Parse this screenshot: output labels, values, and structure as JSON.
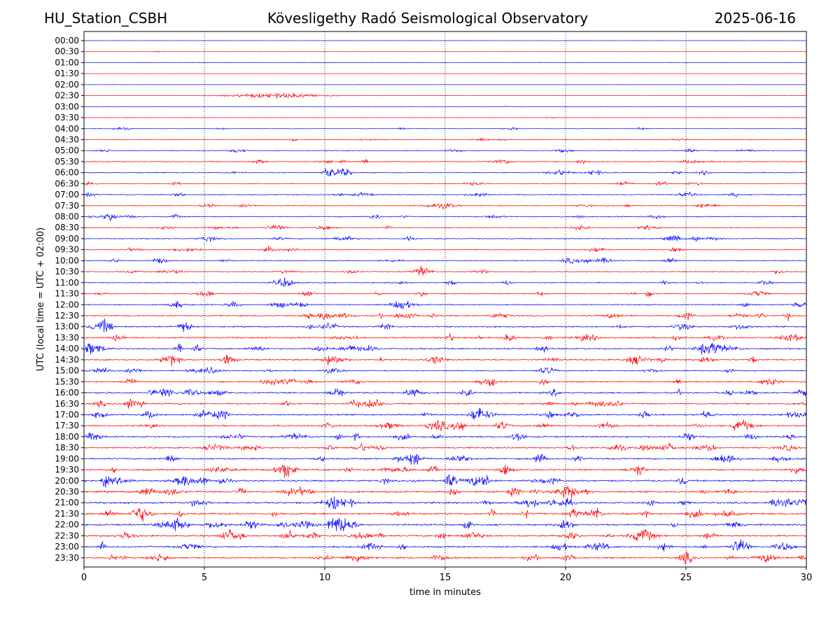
{
  "header": {
    "station": "HU_Station_CSBH",
    "title": "Kövesligethy Radó Seismological Observatory",
    "date": "2025-06-16"
  },
  "chart_data": {
    "type": "line",
    "title": "Kövesligethy Radó Seismological Observatory",
    "xlabel": "time in minutes",
    "ylabel": "UTC (local time = UTC + 02:00)",
    "xlim": [
      0,
      30
    ],
    "xticks": [
      "0",
      "5",
      "10",
      "15",
      "20",
      "25",
      "30"
    ],
    "grid": "vertical dotted lines at 5-minute intervals",
    "colors": [
      "#0000ff",
      "#ff0000"
    ],
    "rows": [
      "00:00",
      "00:30",
      "01:00",
      "01:30",
      "02:00",
      "02:30",
      "03:00",
      "03:30",
      "04:00",
      "04:30",
      "05:00",
      "05:30",
      "06:00",
      "06:30",
      "07:00",
      "07:30",
      "08:00",
      "08:30",
      "09:00",
      "09:30",
      "10:00",
      "10:30",
      "11:00",
      "11:30",
      "12:00",
      "12:30",
      "13:00",
      "13:30",
      "14:00",
      "14:30",
      "15:00",
      "15:30",
      "16:00",
      "16:30",
      "17:00",
      "17:30",
      "18:00",
      "18:30",
      "19:00",
      "19:30",
      "20:00",
      "20:30",
      "21:00",
      "21:30",
      "22:00",
      "22:30",
      "23:00",
      "23:30"
    ],
    "noise_level": [
      0.3,
      0.3,
      0.4,
      0.3,
      0.3,
      0.3,
      0.4,
      0.8,
      1.5,
      1.5,
      2.0,
      2.5,
      2.5,
      2.0,
      2.5,
      2.5,
      2.5,
      2.5,
      2.5,
      2.5,
      2.5,
      2.5,
      2.5,
      2.8,
      3.0,
      3.5,
      3.5,
      4.0,
      4.0,
      4.0,
      3.0,
      3.5,
      4.0,
      4.0,
      4.0,
      4.0,
      4.0,
      4.0,
      4.0,
      4.5,
      4.5,
      4.5,
      4.5,
      4.5,
      4.5,
      4.5,
      4.0,
      4.0
    ],
    "events": [
      {
        "time": "00:30",
        "minute": 3.1,
        "amplitude": 1.5
      },
      {
        "time": "02:30",
        "minute": 8.0,
        "amplitude": 5.0,
        "duration_min": 4.0
      },
      {
        "time": "08:00",
        "minute": 1.1,
        "amplitude": 9
      },
      {
        "time": "06:00",
        "minute": 10.1,
        "amplitude": 8
      },
      {
        "time": "09:00",
        "minute": 24.5,
        "amplitude": 6
      },
      {
        "time": "10:30",
        "minute": 14.2,
        "amplitude": 5
      },
      {
        "time": "11:30",
        "minute": 9.3,
        "amplitude": 7
      },
      {
        "time": "12:30",
        "minute": 10.0,
        "amplitude": 9
      },
      {
        "time": "12:30",
        "minute": 25.0,
        "amplitude": 9
      },
      {
        "time": "14:00",
        "minute": 26.2,
        "amplitude": 9
      },
      {
        "time": "14:30",
        "minute": 6.0,
        "amplitude": 12
      },
      {
        "time": "16:00",
        "minute": 10.5,
        "amplitude": 12
      },
      {
        "time": "16:30",
        "minute": 1.9,
        "amplitude": 12
      },
      {
        "time": "17:00",
        "minute": 16.3,
        "amplitude": 12
      },
      {
        "time": "17:30",
        "minute": 15.6,
        "amplitude": 12
      },
      {
        "time": "18:00",
        "minute": 18.0,
        "amplitude": 10
      },
      {
        "time": "19:00",
        "minute": 13.8,
        "amplitude": 9
      },
      {
        "time": "19:30",
        "minute": 17.5,
        "amplitude": 9
      },
      {
        "time": "20:00",
        "minute": 15.2,
        "amplitude": 14
      },
      {
        "time": "20:00",
        "minute": 5.8,
        "amplitude": 8
      },
      {
        "time": "21:00",
        "minute": 10.5,
        "amplitude": 12
      },
      {
        "time": "22:00",
        "minute": 10.5,
        "amplitude": 12
      },
      {
        "time": "22:30",
        "minute": 8.5,
        "amplitude": 12
      },
      {
        "time": "23:30",
        "minute": 25.0,
        "amplitude": 12
      }
    ]
  }
}
